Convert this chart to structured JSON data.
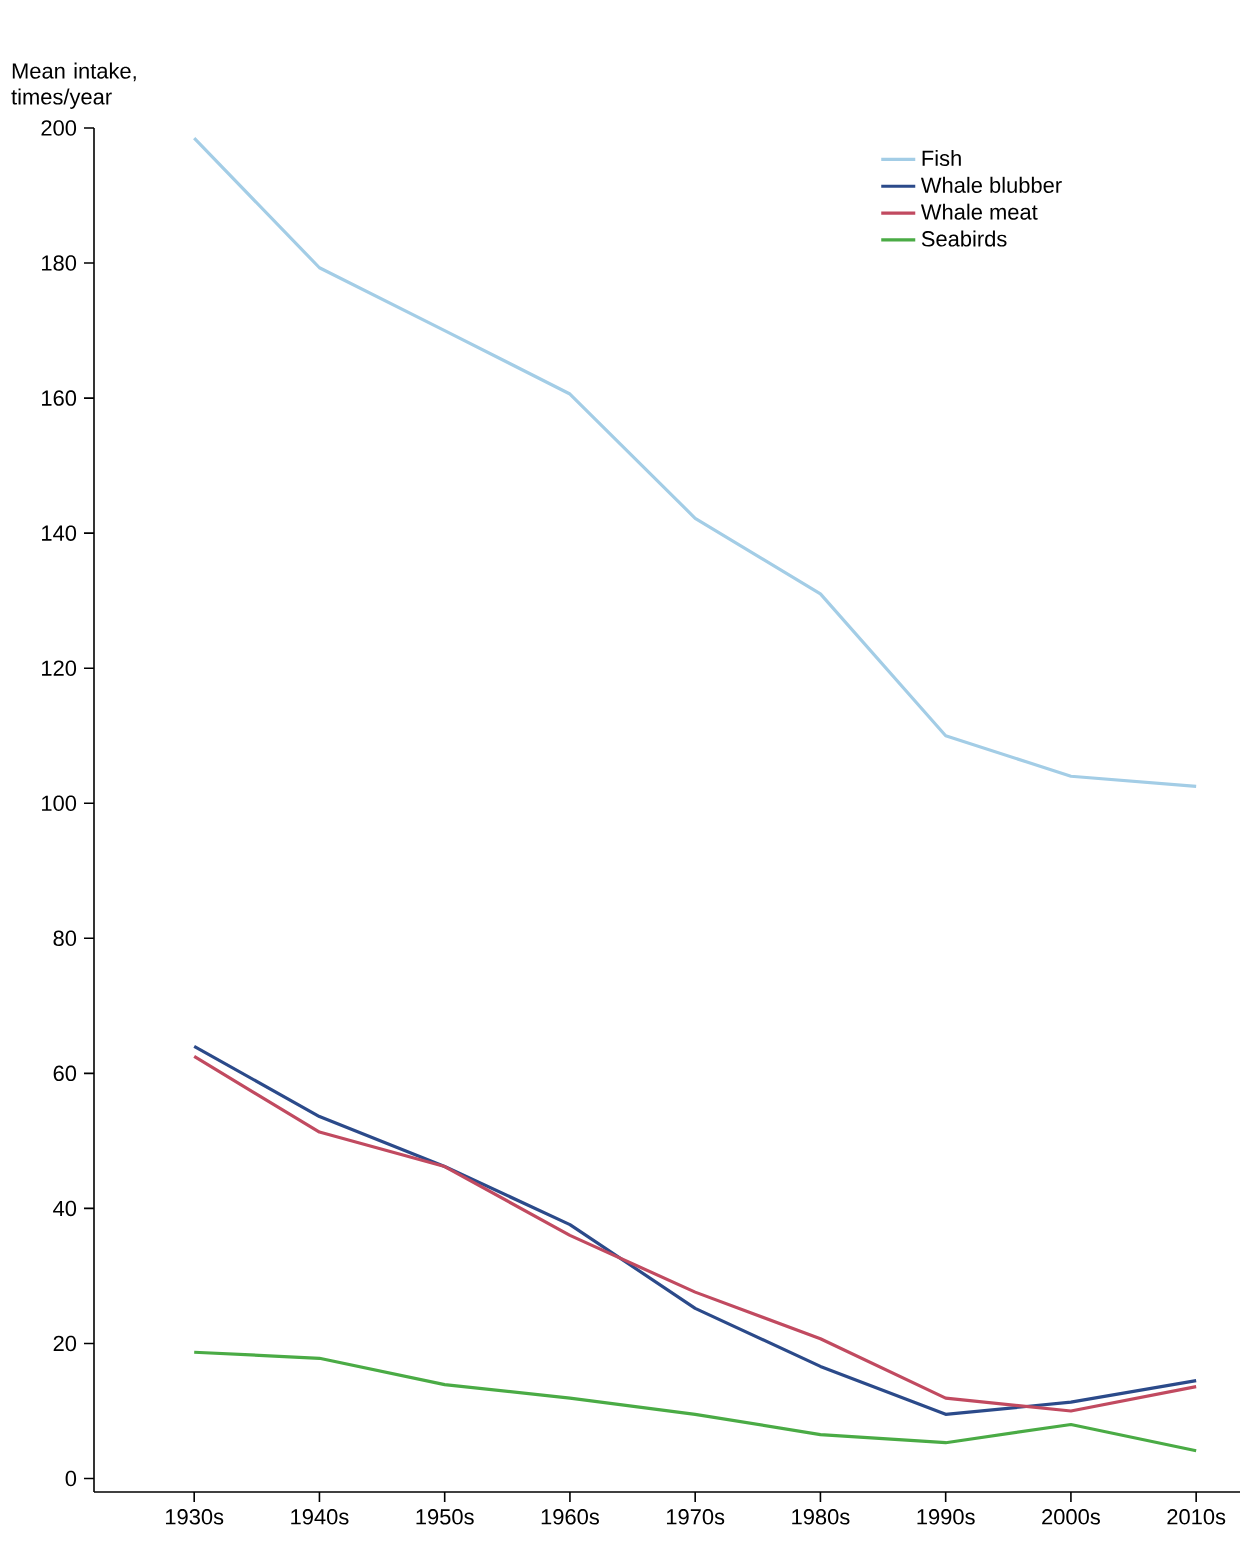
{
  "chart_data": {
    "type": "line",
    "ylabel": "Mean intake, times/year",
    "categories": [
      "1930s",
      "1940s",
      "1950s",
      "1960s",
      "1970s",
      "1980s",
      "1990s",
      "2000s",
      "2010s"
    ],
    "series": [
      {
        "name": "Fish",
        "color": "#a3cde6",
        "values": [
          198.5,
          179.3,
          170,
          160.6,
          142.2,
          131,
          110,
          104,
          102.5
        ]
      },
      {
        "name": "Whale blubber",
        "color": "#2b4a8a",
        "values": [
          64,
          53.6,
          46.2,
          37.6,
          25.2,
          16.6,
          9.5,
          11.3,
          14.5
        ]
      },
      {
        "name": "Whale meat",
        "color": "#c14a60",
        "values": [
          62.5,
          51.3,
          46.2,
          36,
          27.6,
          20.7,
          11.9,
          10,
          13.6
        ]
      },
      {
        "name": "Seabirds",
        "color": "#4aab45",
        "values": [
          18.7,
          17.8,
          13.9,
          11.9,
          9.5,
          6.5,
          5.3,
          8,
          4.1
        ]
      }
    ],
    "ylim": [
      -2,
      200
    ],
    "yticks": [
      0,
      20,
      40,
      60,
      80,
      100,
      120,
      140,
      160,
      180,
      200
    ],
    "legend": "top right",
    "marker": "none",
    "line_style": "solid"
  }
}
